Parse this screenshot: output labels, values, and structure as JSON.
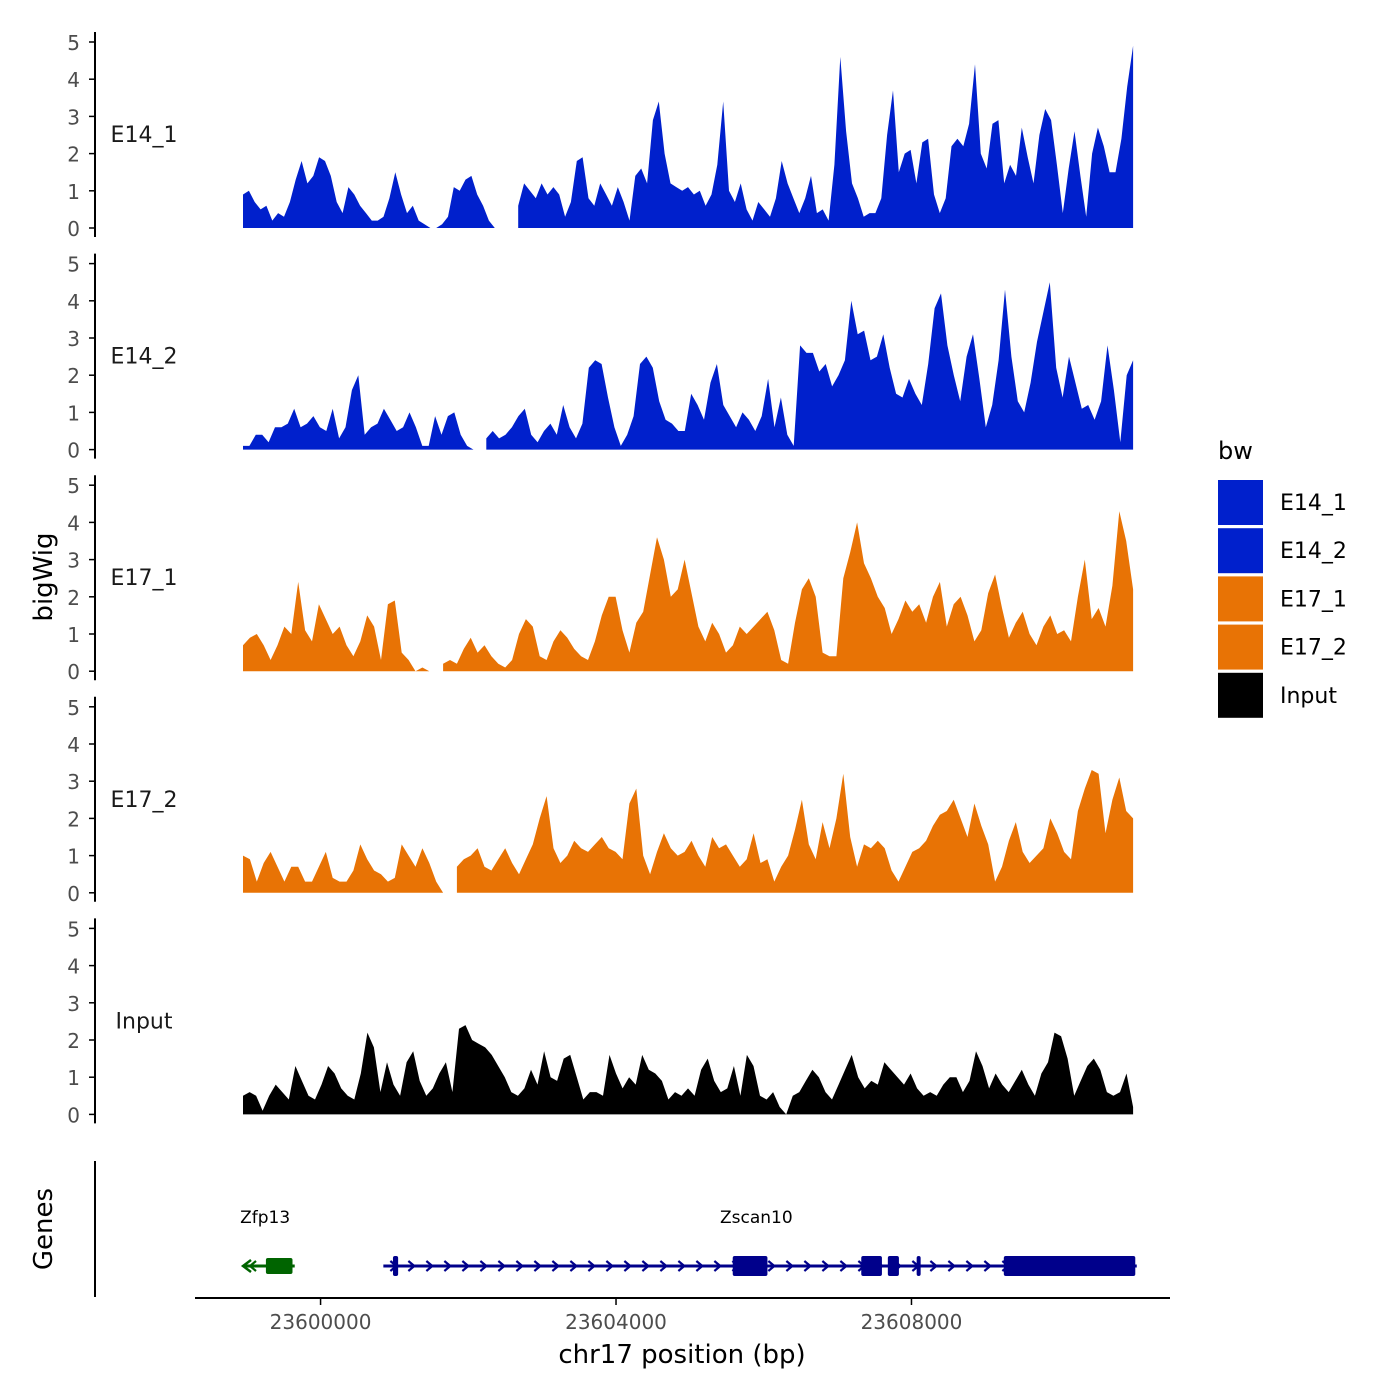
{
  "chart_data": {
    "type": "area",
    "ylabel": "bigWig",
    "xlabel": "chr17 position (bp)",
    "xlim": [
      23598300,
      23611500
    ],
    "ylim": [
      0,
      5
    ],
    "yticks": [
      "0",
      "1",
      "2",
      "3",
      "4",
      "5"
    ],
    "xticks": [
      {
        "value": 23600000,
        "label": "23600000"
      },
      {
        "value": 23604000,
        "label": "23604000"
      },
      {
        "value": 23608000,
        "label": "23608000"
      }
    ],
    "legend": {
      "title": "bw",
      "entries": [
        {
          "label": "E14_1",
          "color": "#0020CC"
        },
        {
          "label": "E14_2",
          "color": "#0020CC"
        },
        {
          "label": "E17_1",
          "color": "#E87305"
        },
        {
          "label": "E17_2",
          "color": "#E87305"
        },
        {
          "label": "Input",
          "color": "#000000"
        }
      ]
    },
    "series": [
      {
        "name": "E14_1",
        "color": "#0020CC",
        "x_start": 23598950,
        "x_end": 23611000,
        "step": 150,
        "values": [
          0.9,
          1.0,
          0.7,
          0.5,
          0.6,
          0.2,
          0.4,
          0.3,
          0.7,
          1.3,
          1.8,
          1.2,
          1.4,
          1.9,
          1.8,
          1.4,
          0.7,
          0.4,
          1.1,
          0.9,
          0.6,
          0.4,
          0.2,
          0.2,
          0.3,
          0.8,
          1.5,
          0.9,
          0.4,
          0.6,
          0.2,
          0.1,
          0,
          0,
          0.1,
          0.3,
          1.1,
          1.0,
          1.3,
          1.4,
          0.9,
          0.6,
          0.2,
          0,
          0,
          null,
          null,
          0.6,
          1.2,
          1.0,
          0.8,
          1.2,
          0.9,
          1.1,
          0.9,
          0.3,
          0.7,
          1.8,
          1.9,
          0.8,
          0.6,
          1.2,
          0.9,
          0.6,
          1.1,
          0.7,
          0.2,
          1.4,
          1.6,
          1.2,
          2.9,
          3.4,
          2.0,
          1.2,
          1.1,
          1.0,
          1.1,
          0.9,
          1.0,
          0.6,
          0.9,
          1.7,
          3.4,
          1.0,
          0.7,
          1.2,
          0.5,
          0.2,
          0.7,
          0.5,
          0.3,
          0.8,
          1.8,
          1.2,
          0.8,
          0.4,
          0.8,
          1.4,
          0.4,
          0.5,
          0.2,
          1.7,
          4.6,
          2.6,
          1.2,
          0.8,
          0.3,
          0.4,
          0.4,
          0.8,
          2.5,
          3.7,
          1.5,
          2.0,
          2.1,
          1.2,
          2.3,
          2.4,
          0.9,
          0.4,
          0.8,
          2.2,
          2.4,
          2.2,
          2.8,
          4.4,
          2.0,
          1.6,
          2.8,
          2.9,
          1.2,
          1.7,
          1.4,
          2.7,
          1.9,
          1.2,
          2.5,
          3.2,
          2.9,
          1.7,
          0.4,
          1.6,
          2.6,
          1.4,
          0.3,
          2.0,
          2.7,
          2.2,
          1.5,
          1.5,
          2.4,
          3.8,
          4.9
        ]
      },
      {
        "name": "E14_2",
        "color": "#0020CC",
        "x_start": 23598950,
        "x_end": 23611000,
        "step": 150,
        "values": [
          0.1,
          0.1,
          0.4,
          0.4,
          0.2,
          0.6,
          0.6,
          0.7,
          1.1,
          0.6,
          0.7,
          0.9,
          0.6,
          0.5,
          1.1,
          0.3,
          0.6,
          1.6,
          2.0,
          0.4,
          0.6,
          0.7,
          1.1,
          0.8,
          0.5,
          0.6,
          1.0,
          0.6,
          0.1,
          0.1,
          0.9,
          0.4,
          0.9,
          1.0,
          0.4,
          0.1,
          0,
          null,
          0.3,
          0.5,
          0.3,
          0.4,
          0.6,
          0.9,
          1.1,
          0.4,
          0.2,
          0.5,
          0.7,
          0.4,
          1.2,
          0.6,
          0.3,
          0.7,
          2.2,
          2.4,
          2.3,
          1.4,
          0.6,
          0.1,
          0.4,
          0.9,
          2.3,
          2.5,
          2.2,
          1.3,
          0.8,
          0.7,
          0.5,
          0.5,
          1.5,
          1.2,
          0.8,
          1.8,
          2.3,
          1.2,
          0.9,
          0.6,
          1.0,
          0.8,
          0.5,
          0.9,
          1.9,
          0.6,
          1.4,
          0.4,
          0.1,
          2.8,
          2.6,
          2.6,
          2.1,
          2.3,
          1.7,
          2.0,
          2.4,
          4.0,
          3.1,
          3.2,
          2.4,
          2.5,
          3.1,
          2.2,
          1.5,
          1.4,
          1.9,
          1.5,
          1.2,
          2.3,
          3.8,
          4.2,
          2.8,
          2.0,
          1.3,
          2.5,
          3.1,
          1.9,
          0.6,
          1.2,
          2.4,
          4.3,
          2.5,
          1.3,
          1.0,
          1.8,
          2.9,
          3.7,
          4.5,
          2.2,
          1.4,
          2.5,
          1.8,
          1.1,
          1.2,
          0.8,
          1.3,
          2.8,
          1.6,
          0.2,
          2.0,
          2.4
        ]
      },
      {
        "name": "E17_1",
        "color": "#E87305",
        "x_start": 23598950,
        "x_end": 23611000,
        "step": 150,
        "values": [
          0.7,
          0.9,
          1.0,
          0.7,
          0.3,
          0.7,
          1.2,
          1.0,
          2.4,
          1.1,
          0.8,
          1.8,
          1.4,
          1.0,
          1.2,
          0.7,
          0.4,
          0.8,
          1.5,
          1.2,
          0.3,
          1.8,
          1.9,
          0.5,
          0.3,
          0,
          0.1,
          0,
          null,
          0.2,
          0.3,
          0.2,
          0.6,
          0.9,
          0.5,
          0.7,
          0.4,
          0.2,
          0.1,
          0.3,
          1.0,
          1.4,
          1.2,
          0.4,
          0.3,
          0.8,
          1.1,
          0.9,
          0.6,
          0.4,
          0.3,
          0.8,
          1.5,
          2.0,
          2.0,
          1.1,
          0.5,
          1.3,
          1.6,
          2.6,
          3.6,
          3.0,
          2.0,
          2.2,
          3.0,
          2.1,
          1.2,
          0.8,
          1.3,
          1.0,
          0.5,
          0.7,
          1.2,
          1.0,
          1.2,
          1.4,
          1.6,
          1.1,
          0.3,
          0.2,
          1.3,
          2.2,
          2.5,
          2.0,
          0.5,
          0.4,
          0.4,
          2.5,
          3.2,
          4.0,
          2.9,
          2.5,
          2.0,
          1.7,
          1.0,
          1.4,
          1.9,
          1.6,
          1.8,
          1.3,
          2.0,
          2.4,
          1.2,
          1.8,
          2.0,
          1.5,
          0.8,
          1.1,
          2.1,
          2.6,
          1.7,
          0.9,
          1.3,
          1.6,
          1.0,
          0.7,
          1.2,
          1.5,
          1.0,
          1.1,
          0.8,
          2.0,
          3.0,
          1.4,
          1.7,
          1.2,
          2.3,
          4.3,
          3.5,
          2.2
        ]
      },
      {
        "name": "E17_2",
        "color": "#E87305",
        "x_start": 23598950,
        "x_end": 23611000,
        "step": 150,
        "values": [
          1.0,
          0.9,
          0.3,
          0.8,
          1.1,
          0.7,
          0.3,
          0.7,
          0.7,
          0.3,
          0.3,
          0.7,
          1.1,
          0.4,
          0.3,
          0.3,
          0.6,
          1.3,
          0.9,
          0.6,
          0.5,
          0.3,
          0.4,
          1.3,
          1.0,
          0.7,
          1.2,
          0.8,
          0.3,
          0,
          null,
          0.7,
          0.9,
          1.0,
          1.2,
          0.7,
          0.6,
          0.9,
          1.2,
          0.8,
          0.5,
          0.9,
          1.3,
          2.0,
          2.6,
          1.2,
          0.8,
          1.0,
          1.4,
          1.2,
          1.1,
          1.3,
          1.5,
          1.2,
          1.1,
          0.9,
          2.4,
          2.8,
          1.0,
          0.5,
          1.1,
          1.6,
          1.2,
          1.0,
          1.1,
          1.4,
          1.0,
          0.7,
          1.5,
          1.2,
          1.3,
          1.0,
          0.7,
          0.9,
          1.6,
          0.8,
          0.9,
          0.3,
          0.7,
          1.0,
          1.7,
          2.5,
          1.3,
          0.9,
          1.9,
          1.2,
          2.0,
          3.2,
          1.5,
          0.7,
          1.3,
          1.2,
          1.4,
          1.2,
          0.6,
          0.3,
          0.7,
          1.1,
          1.2,
          1.4,
          1.8,
          2.1,
          2.2,
          2.5,
          2.0,
          1.5,
          2.4,
          1.8,
          1.3,
          0.3,
          0.7,
          1.4,
          1.9,
          1.1,
          0.8,
          1.0,
          1.2,
          2.0,
          1.6,
          1.1,
          0.9,
          2.2,
          2.8,
          3.3,
          3.2,
          1.6,
          2.5,
          3.1,
          2.2,
          2.0
        ]
      },
      {
        "name": "Input",
        "color": "#000000",
        "x_start": 23598950,
        "x_end": 23611000,
        "step": 150,
        "values": [
          0.5,
          0.6,
          0.5,
          0.1,
          0.5,
          0.8,
          0.6,
          0.4,
          1.3,
          0.9,
          0.5,
          0.4,
          0.8,
          1.3,
          1.1,
          0.7,
          0.5,
          0.4,
          1.1,
          2.2,
          1.8,
          0.6,
          1.4,
          0.8,
          0.5,
          1.4,
          1.7,
          0.9,
          0.5,
          0.7,
          1.1,
          1.4,
          0.6,
          2.3,
          2.4,
          2.0,
          1.9,
          1.8,
          1.6,
          1.3,
          1.0,
          0.6,
          0.5,
          0.7,
          1.2,
          0.8,
          1.7,
          1.0,
          0.9,
          1.5,
          1.6,
          1.0,
          0.4,
          0.6,
          0.6,
          0.5,
          1.6,
          1.1,
          0.7,
          1.0,
          0.8,
          1.6,
          1.2,
          1.1,
          0.9,
          0.4,
          0.6,
          0.5,
          0.7,
          0.5,
          1.2,
          1.5,
          0.9,
          0.6,
          0.7,
          1.3,
          0.5,
          1.6,
          1.3,
          0.5,
          0.4,
          0.6,
          0.2,
          0,
          0.5,
          0.6,
          0.9,
          1.2,
          1.0,
          0.6,
          0.4,
          0.8,
          1.2,
          1.6,
          1.0,
          0.7,
          0.9,
          0.8,
          1.4,
          1.2,
          1.0,
          0.8,
          1.1,
          0.7,
          0.5,
          0.6,
          0.5,
          0.8,
          1.0,
          1.0,
          0.6,
          0.9,
          1.7,
          1.3,
          0.7,
          1.1,
          0.8,
          0.6,
          0.9,
          1.2,
          0.8,
          0.5,
          1.1,
          1.4,
          2.2,
          2.1,
          1.5,
          0.5,
          0.9,
          1.3,
          1.5,
          1.2,
          0.6,
          0.5,
          0.6,
          1.1,
          0.2
        ]
      }
    ],
    "genes_track": {
      "label": "Genes",
      "genes": [
        {
          "name": "Zfp13",
          "strand": "-",
          "color": "#006400",
          "start": 23598950,
          "end": 23599650,
          "label_x": 23599250,
          "exons": [
            {
              "start": 23599260,
              "end": 23599620,
              "type": "utr"
            }
          ]
        },
        {
          "name": "Zscan10",
          "strand": "+",
          "color": "#00008B",
          "start": 23600850,
          "end": 23611050,
          "label_x": 23605900,
          "exons": [
            {
              "start": 23600980,
              "end": 23601050,
              "type": "cds"
            },
            {
              "start": 23605580,
              "end": 23606050,
              "type": "cds"
            },
            {
              "start": 23607320,
              "end": 23607600,
              "type": "cds"
            },
            {
              "start": 23607680,
              "end": 23607830,
              "type": "cds"
            },
            {
              "start": 23608070,
              "end": 23608120,
              "type": "cds"
            },
            {
              "start": 23609250,
              "end": 23611030,
              "type": "cds"
            }
          ]
        }
      ]
    }
  }
}
